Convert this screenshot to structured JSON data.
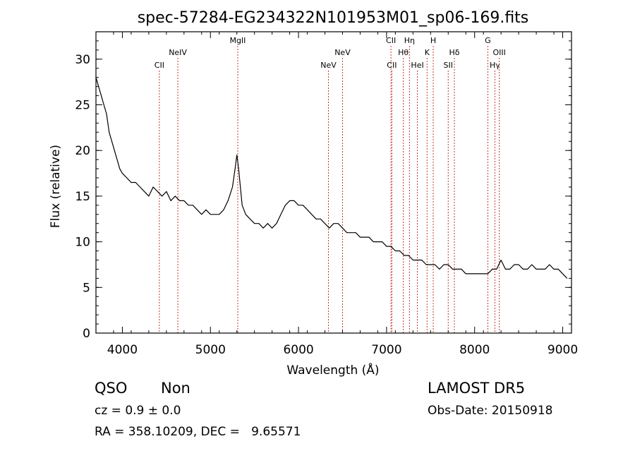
{
  "chart_data": {
    "type": "line",
    "title": "spec-57284-EG234322N101953M01_sp06-169.fits",
    "xlabel": "Wavelength (Å)",
    "ylabel": "Flux (relative)",
    "xlim": [
      3700,
      9100
    ],
    "ylim": [
      0,
      33
    ],
    "xticks": [
      4000,
      5000,
      6000,
      7000,
      8000,
      9000
    ],
    "yticks": [
      0,
      5,
      10,
      15,
      20,
      25,
      30
    ],
    "grid": false,
    "series": [
      {
        "x": [
          3700,
          3730,
          3760,
          3790,
          3820,
          3850,
          3880,
          3910,
          3940,
          3970,
          4000,
          4050,
          4100,
          4150,
          4200,
          4250,
          4300,
          4350,
          4400,
          4450,
          4500,
          4550,
          4600,
          4650,
          4700,
          4750,
          4800,
          4850,
          4900,
          4950,
          5000,
          5050,
          5100,
          5150,
          5200,
          5250,
          5280,
          5300,
          5320,
          5340,
          5360,
          5400,
          5450,
          5500,
          5550,
          5600,
          5650,
          5700,
          5750,
          5800,
          5850,
          5900,
          5950,
          6000,
          6050,
          6100,
          6150,
          6200,
          6250,
          6300,
          6350,
          6400,
          6450,
          6500,
          6550,
          6600,
          6650,
          6700,
          6750,
          6800,
          6850,
          6900,
          6950,
          7000,
          7050,
          7100,
          7150,
          7200,
          7250,
          7300,
          7350,
          7400,
          7450,
          7500,
          7550,
          7600,
          7650,
          7700,
          7750,
          7800,
          7850,
          7900,
          7950,
          8000,
          8050,
          8100,
          8150,
          8200,
          8250,
          8300,
          8350,
          8400,
          8450,
          8500,
          8550,
          8600,
          8650,
          8700,
          8750,
          8800,
          8850,
          8900,
          8950,
          9000,
          9050
        ],
        "y": [
          28,
          27,
          26,
          25,
          24,
          22,
          21,
          20,
          19,
          18,
          17.5,
          17,
          16.5,
          16.5,
          16,
          15.5,
          15,
          16,
          15.5,
          15,
          15.5,
          14.5,
          15,
          14.5,
          14.5,
          14,
          14,
          13.5,
          13,
          13.5,
          13,
          13,
          13,
          13.5,
          14.5,
          16,
          18,
          19.5,
          18,
          16,
          14,
          13,
          12.5,
          12,
          12,
          11.5,
          12,
          11.5,
          12,
          13,
          14,
          14.5,
          14.5,
          14,
          14,
          13.5,
          13,
          12.5,
          12.5,
          12,
          11.5,
          12,
          12,
          11.5,
          11,
          11,
          11,
          10.5,
          10.5,
          10.5,
          10,
          10,
          10,
          9.5,
          9.5,
          9,
          9,
          8.5,
          8.5,
          8,
          8,
          8,
          7.5,
          7.5,
          7.5,
          7,
          7.5,
          7.5,
          7,
          7,
          7,
          6.5,
          6.5,
          6.5,
          6.5,
          6.5,
          6.5,
          7,
          7,
          8,
          7,
          7,
          7.5,
          7.5,
          7,
          7,
          7.5,
          7,
          7,
          7,
          7.5,
          7,
          7,
          6.5,
          6
        ]
      }
    ],
    "lines": [
      {
        "x": 4420,
        "label": "CII",
        "row": 2
      },
      {
        "x": 4630,
        "label": "NeIV",
        "row": 1
      },
      {
        "x": 5310,
        "label": "MgII",
        "row": 0
      },
      {
        "x": 6340,
        "label": "NeV",
        "row": 2
      },
      {
        "x": 6500,
        "label": "NeV",
        "row": 1
      },
      {
        "x": 7050,
        "label": "CII",
        "row": 0
      },
      {
        "x": 7060,
        "label": "CII",
        "row": 2
      },
      {
        "x": 7190,
        "label": "Hθ",
        "row": 1
      },
      {
        "x": 7260,
        "label": "Hη",
        "row": 0
      },
      {
        "x": 7350,
        "label": "HeI",
        "row": 2
      },
      {
        "x": 7460,
        "label": "K",
        "row": 1
      },
      {
        "x": 7530,
        "label": "H",
        "row": 0
      },
      {
        "x": 7700,
        "label": "SII",
        "row": 2
      },
      {
        "x": 7770,
        "label": "Hδ",
        "row": 1
      },
      {
        "x": 8150,
        "label": "G",
        "row": 0
      },
      {
        "x": 8230,
        "label": "Hγ",
        "row": 2
      },
      {
        "x": 8280,
        "label": "OIII",
        "row": 1
      }
    ]
  },
  "info": {
    "object_class": "QSO",
    "subclass": "Non",
    "survey": "LAMOST DR5",
    "cz": "cz = 0.9 ± 0.0",
    "obs_date": "Obs-Date: 20150918",
    "coords": "RA = 358.10209, DEC =   9.65571"
  }
}
